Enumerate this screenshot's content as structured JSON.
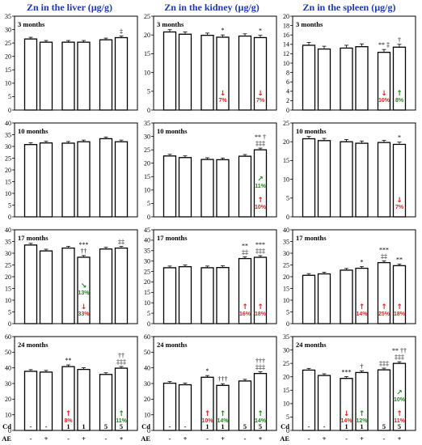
{
  "colors": {
    "title": "#1f3aa8",
    "decrease": "#e02020",
    "increase": "#1a8a1a",
    "bar": "#ffffff",
    "bar_edge": "#000000"
  },
  "x_labels": {
    "cd_label": "Cd",
    "ae_label": "AE",
    "cd": [
      "-",
      "-",
      "1",
      "1",
      "5",
      "5"
    ],
    "ae": [
      "-",
      "+",
      "-",
      "+",
      "-",
      "+"
    ]
  },
  "chart_data": [
    {
      "type": "bar",
      "title": "Zn in the liver (µg/g)",
      "period": "3 months",
      "ylim": [
        0,
        35
      ],
      "yticks": [
        0,
        5,
        10,
        15,
        20,
        25,
        30,
        35
      ],
      "values": [
        26.5,
        25.3,
        25.3,
        25.3,
        26.2,
        27.0
      ],
      "significance": [
        "",
        "",
        "",
        "",
        "",
        "‡"
      ],
      "changes": [
        null,
        null,
        null,
        null,
        null,
        null
      ]
    },
    {
      "type": "bar",
      "title": "Zn in the kidney (µg/g)",
      "period": "3 months",
      "ylim": [
        0,
        25
      ],
      "yticks": [
        0,
        5,
        10,
        15,
        20,
        25
      ],
      "values": [
        20.8,
        20.2,
        19.9,
        19.4,
        19.7,
        19.3
      ],
      "significance": [
        "",
        "",
        "",
        "*",
        "",
        "*"
      ],
      "changes": [
        null,
        null,
        null,
        {
          "dir": "down",
          "pct": "7%"
        },
        null,
        {
          "dir": "down",
          "pct": "7%"
        }
      ]
    },
    {
      "type": "bar",
      "title": "Zn in the spleen (µg/g)",
      "period": "3 months",
      "ylim": [
        0,
        20
      ],
      "yticks": [
        0,
        2,
        4,
        6,
        8,
        10,
        12,
        14,
        16,
        18,
        20
      ],
      "values": [
        13.8,
        13.0,
        13.2,
        13.5,
        12.3,
        13.4
      ],
      "significance": [
        "",
        "",
        "",
        "",
        "** ‡",
        "†"
      ],
      "changes": [
        null,
        null,
        null,
        null,
        {
          "dir": "down",
          "pct": "10%"
        },
        {
          "dir": "up",
          "pct": "8%"
        }
      ]
    },
    {
      "type": "bar",
      "period": "10 months",
      "ylim": [
        0,
        40
      ],
      "yticks": [
        0,
        5,
        10,
        15,
        20,
        25,
        30,
        35,
        40
      ],
      "values": [
        30.8,
        31.5,
        31.4,
        32.0,
        33.3,
        32.0
      ],
      "significance": [
        "",
        "",
        "",
        "",
        "",
        ""
      ],
      "changes": [
        null,
        null,
        null,
        null,
        null,
        null
      ]
    },
    {
      "type": "bar",
      "period": "10 months",
      "ylim": [
        0,
        35
      ],
      "yticks": [
        0,
        5,
        10,
        15,
        20,
        25,
        30,
        35
      ],
      "values": [
        22.7,
        22.1,
        21.4,
        21.3,
        22.6,
        25.0
      ],
      "significance": [
        "",
        "",
        "",
        "",
        "",
        "** †\n‡‡‡"
      ],
      "changes": [
        null,
        null,
        null,
        null,
        null,
        {
          "dir": "up",
          "pct": "10%",
          "dir2": "up",
          "pct2": "11%"
        }
      ]
    },
    {
      "type": "bar",
      "period": "10 months",
      "ylim": [
        0,
        25
      ],
      "yticks": [
        0,
        5,
        10,
        15,
        20,
        25
      ],
      "values": [
        20.8,
        20.3,
        20.0,
        19.6,
        19.8,
        19.3
      ],
      "significance": [
        "",
        "",
        "",
        "",
        "",
        "*"
      ],
      "changes": [
        null,
        null,
        null,
        null,
        null,
        {
          "dir": "down",
          "pct": "7%"
        }
      ]
    },
    {
      "type": "bar",
      "period": "17 months",
      "ylim": [
        0,
        40
      ],
      "yticks": [
        0,
        5,
        10,
        15,
        20,
        25,
        30,
        35,
        40
      ],
      "values": [
        33.5,
        31.0,
        32.2,
        28.3,
        31.8,
        32.2
      ],
      "significance": [
        "",
        "",
        "",
        "***\n††",
        "",
        "‡‡"
      ],
      "changes": [
        null,
        null,
        null,
        {
          "dir": "down",
          "pct": "33%",
          "dir2": "down",
          "pct2": "13%"
        },
        null,
        null
      ]
    },
    {
      "type": "bar",
      "period": "17 months",
      "ylim": [
        0,
        45
      ],
      "yticks": [
        0,
        5,
        10,
        15,
        20,
        25,
        30,
        35,
        40,
        45
      ],
      "values": [
        26.8,
        27.3,
        26.8,
        26.9,
        31.2,
        31.8
      ],
      "significance": [
        "",
        "",
        "",
        "",
        "**\n‡‡",
        "***\n‡‡‡"
      ],
      "changes": [
        null,
        null,
        null,
        null,
        {
          "dir": "up",
          "pct": "16%"
        },
        {
          "dir": "up",
          "pct": "18%"
        }
      ]
    },
    {
      "type": "bar",
      "period": "17 months",
      "ylim": [
        0,
        40
      ],
      "yticks": [
        0,
        5,
        10,
        15,
        20,
        25,
        30,
        35,
        40
      ],
      "values": [
        20.6,
        21.2,
        22.8,
        23.6,
        26.0,
        24.7
      ],
      "significance": [
        "",
        "",
        "",
        "*",
        "***\n‡‡",
        "**"
      ],
      "changes": [
        null,
        null,
        null,
        {
          "dir": "up",
          "pct": "14%"
        },
        {
          "dir": "up",
          "pct": "25%"
        },
        {
          "dir": "up",
          "pct": "18%"
        }
      ]
    },
    {
      "type": "bar",
      "period": "24 months",
      "ylim": [
        0,
        60
      ],
      "yticks": [
        0,
        10,
        20,
        30,
        40,
        50,
        60
      ],
      "values": [
        37.8,
        37.3,
        40.8,
        39.0,
        35.8,
        39.8
      ],
      "significance": [
        "",
        "",
        "**",
        "",
        "",
        "††\n‡‡‡"
      ],
      "changes": [
        null,
        null,
        {
          "dir": "up",
          "pct": "8%"
        },
        null,
        null,
        {
          "dir": "up",
          "pct": "11%"
        }
      ]
    },
    {
      "type": "bar",
      "period": "24 months",
      "ylim": [
        0,
        60
      ],
      "yticks": [
        0,
        10,
        20,
        30,
        40,
        50,
        60
      ],
      "values": [
        30.2,
        29.2,
        34.0,
        28.8,
        31.6,
        36.4
      ],
      "significance": [
        "",
        "",
        "*",
        "†††",
        "",
        "†††\n‡‡‡"
      ],
      "changes": [
        null,
        null,
        {
          "dir": "up",
          "pct": "10%"
        },
        {
          "dir": "up",
          "pct": "14%"
        },
        null,
        {
          "dir": "up",
          "pct": "14%"
        }
      ]
    },
    {
      "type": "bar",
      "period": "24 months",
      "ylim": [
        0,
        35
      ],
      "yticks": [
        0,
        5,
        10,
        15,
        20,
        25,
        30,
        35
      ],
      "values": [
        22.5,
        20.5,
        19.4,
        21.6,
        22.6,
        25.0
      ],
      "significance": [
        "",
        "",
        "***",
        "†",
        "‡‡‡",
        "** ††\n‡‡‡"
      ],
      "changes": [
        null,
        null,
        {
          "dir": "down",
          "pct": "14%"
        },
        {
          "dir": "up",
          "pct": "12%"
        },
        null,
        {
          "dir": "up",
          "pct": "11%",
          "dir2": "up",
          "pct2": "10%"
        }
      ]
    }
  ]
}
